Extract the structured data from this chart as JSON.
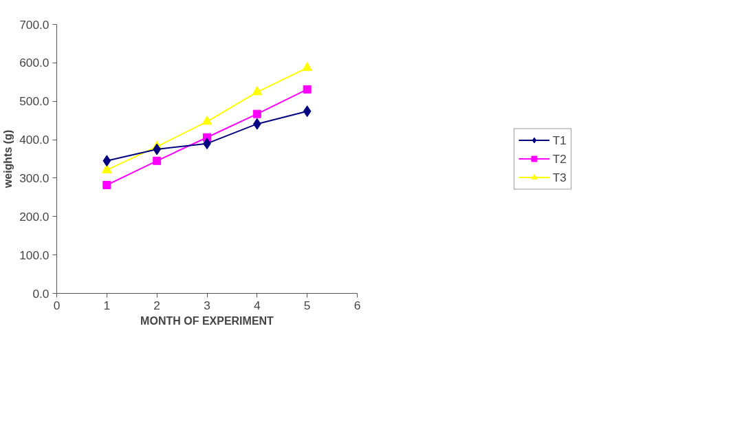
{
  "chart_data": {
    "type": "line",
    "xlabel": "MONTH OF EXPERIMENT",
    "ylabel": "weights (g)",
    "x": [
      1,
      2,
      3,
      4,
      5
    ],
    "xlim": [
      0,
      6
    ],
    "xticks": [
      0,
      1,
      2,
      3,
      4,
      5,
      6
    ],
    "ylim": [
      0,
      700
    ],
    "yticks": [
      {
        "value": 0,
        "label": "0.0"
      },
      {
        "value": 100,
        "label": "100.0"
      },
      {
        "value": 200,
        "label": "200.0"
      },
      {
        "value": 300,
        "label": "300.0"
      },
      {
        "value": 400,
        "label": "400.0"
      },
      {
        "value": 500,
        "label": "500.0"
      },
      {
        "value": 600,
        "label": "600.0"
      },
      {
        "value": 700,
        "label": "700.0"
      }
    ],
    "grid": false,
    "legend": "right",
    "series": [
      {
        "name": "T1",
        "color": "#000080",
        "marker": "diamond",
        "values": [
          345,
          375,
          390,
          441,
          474
        ]
      },
      {
        "name": "T2",
        "color": "#ff00ff",
        "marker": "square",
        "values": [
          282,
          345,
          406,
          467,
          531
        ]
      },
      {
        "name": "T3",
        "color": "#ffff00",
        "marker": "triangle",
        "values": [
          321,
          382,
          447,
          524,
          587
        ]
      }
    ]
  }
}
